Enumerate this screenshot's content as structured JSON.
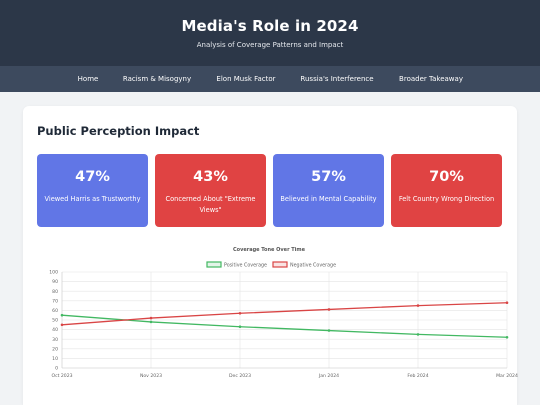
{
  "header": {
    "title": "Media's Role in 2024",
    "subtitle": "Analysis of Coverage Patterns and Impact"
  },
  "nav": {
    "items": [
      {
        "label": "Home"
      },
      {
        "label": "Racism & Misogyny"
      },
      {
        "label": "Elon Musk Factor"
      },
      {
        "label": "Russia's Interference"
      },
      {
        "label": "Broader Takeaway"
      }
    ]
  },
  "section": {
    "title": "Public Perception Impact"
  },
  "stats": [
    {
      "value": "47%",
      "label": "Viewed Harris as Trustworthy",
      "color": "#6176e6"
    },
    {
      "value": "43%",
      "label": "Concerned About \"Extreme Views\"",
      "color": "#e04343"
    },
    {
      "value": "57%",
      "label": "Believed in Mental Capability",
      "color": "#6176e6"
    },
    {
      "value": "70%",
      "label": "Felt Country Wrong Direction",
      "color": "#e04343"
    }
  ],
  "colors": {
    "header_bg": "#2c3748",
    "nav_bg": "#3d4a5e",
    "positive": "#42b862",
    "negative": "#d94545"
  },
  "chart_data": {
    "type": "line",
    "title": "Coverage Tone Over Time",
    "categories": [
      "Oct 2023",
      "Nov 2023",
      "Dec 2023",
      "Jan 2024",
      "Feb 2024",
      "Mar 2024"
    ],
    "series": [
      {
        "name": "Positive Coverage",
        "values": [
          55,
          48,
          43,
          39,
          35,
          32
        ],
        "color": "#42b862"
      },
      {
        "name": "Negative Coverage",
        "values": [
          45,
          52,
          57,
          61,
          65,
          68
        ],
        "color": "#d94545"
      }
    ],
    "ylim": [
      0,
      100
    ],
    "yticks": [
      0,
      10,
      20,
      30,
      40,
      50,
      60,
      70,
      80,
      90,
      100
    ],
    "grid": true,
    "legend": "top-center"
  }
}
